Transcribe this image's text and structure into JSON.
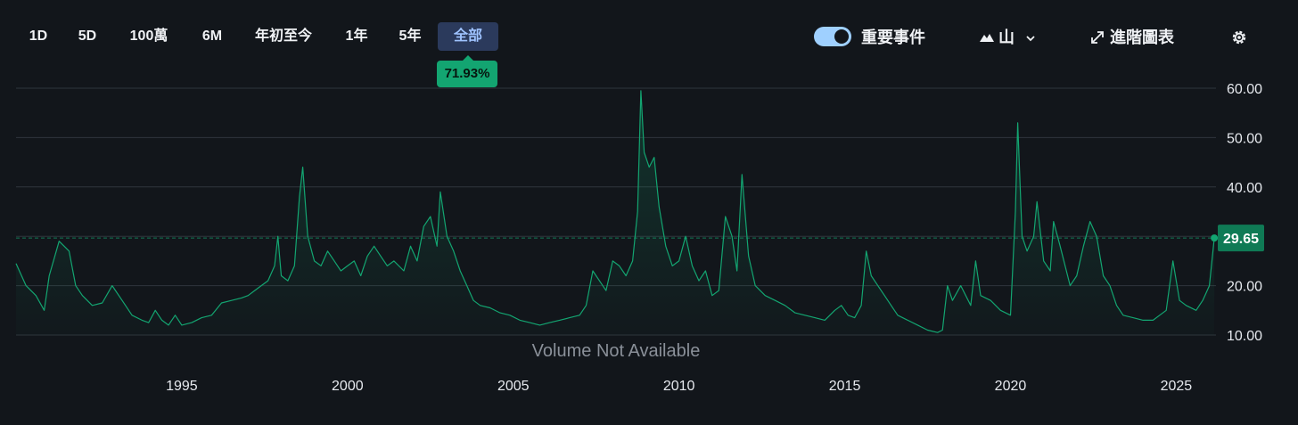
{
  "toolbar": {
    "ranges": [
      "1D",
      "5D",
      "100萬",
      "6M",
      "年初至今",
      "1年",
      "5年",
      "全部"
    ],
    "active_range": "全部",
    "change_badge": "71.93%",
    "events_toggle_label": "重要事件",
    "events_toggle_on": true,
    "chart_style_label": "山",
    "advanced_chart_label": "進階圖表"
  },
  "colors": {
    "line": "#13a571",
    "badge": "#13a571",
    "active_tab_bg": "#2b3a5c",
    "background": "#12161b"
  },
  "chart_data": {
    "type": "area",
    "y_ticks": [
      10,
      20,
      30,
      40,
      50,
      60
    ],
    "y_tick_labels": [
      "10.00",
      "20.00",
      "40.00",
      "50.00",
      "60.00"
    ],
    "ylim": [
      10,
      60
    ],
    "x_tick_labels": [
      "1995",
      "2000",
      "2005",
      "2010",
      "2015",
      "2020",
      "2025"
    ],
    "xlim": [
      1990.0,
      2026.2
    ],
    "last_value": 29.65,
    "last_value_label": "29.65",
    "reference_line_value": 29.65,
    "volume_message": "Volume Not Available",
    "grid": true,
    "series": [
      {
        "x": [
          1990.0,
          1990.3,
          1990.6,
          1990.85,
          1991.0,
          1991.3,
          1991.6,
          1991.8,
          1992.0,
          1992.3,
          1992.6,
          1992.9,
          1993.2,
          1993.5,
          1993.8,
          1994.0,
          1994.2,
          1994.4,
          1994.6,
          1994.8,
          1995.0,
          1995.3,
          1995.6,
          1995.9,
          1996.2,
          1996.5,
          1996.8,
          1997.0,
          1997.2,
          1997.4,
          1997.6,
          1997.8,
          1997.9,
          1998.0,
          1998.2,
          1998.4,
          1998.55,
          1998.65,
          1998.8,
          1999.0,
          1999.2,
          1999.4,
          1999.6,
          1999.8,
          2000.0,
          2000.2,
          2000.4,
          2000.6,
          2000.8,
          2001.0,
          2001.2,
          2001.4,
          2001.7,
          2001.9,
          2002.1,
          2002.3,
          2002.5,
          2002.7,
          2002.8,
          2003.0,
          2003.2,
          2003.4,
          2003.6,
          2003.8,
          2004.0,
          2004.3,
          2004.6,
          2004.9,
          2005.2,
          2005.5,
          2005.8,
          2006.1,
          2006.4,
          2006.7,
          2007.0,
          2007.2,
          2007.4,
          2007.6,
          2007.8,
          2008.0,
          2008.2,
          2008.4,
          2008.6,
          2008.75,
          2008.85,
          2008.95,
          2009.1,
          2009.25,
          2009.4,
          2009.6,
          2009.8,
          2010.0,
          2010.2,
          2010.4,
          2010.6,
          2010.8,
          2011.0,
          2011.2,
          2011.4,
          2011.6,
          2011.75,
          2011.9,
          2012.1,
          2012.3,
          2012.6,
          2012.9,
          2013.2,
          2013.5,
          2013.8,
          2014.1,
          2014.4,
          2014.7,
          2014.9,
          2015.1,
          2015.3,
          2015.5,
          2015.65,
          2015.8,
          2016.0,
          2016.2,
          2016.4,
          2016.6,
          2016.9,
          2017.2,
          2017.5,
          2017.8,
          2017.95,
          2018.1,
          2018.25,
          2018.5,
          2018.8,
          2018.95,
          2019.1,
          2019.4,
          2019.7,
          2020.0,
          2020.15,
          2020.22,
          2020.35,
          2020.5,
          2020.7,
          2020.8,
          2021.0,
          2021.2,
          2021.3,
          2021.5,
          2021.8,
          2022.0,
          2022.2,
          2022.4,
          2022.6,
          2022.8,
          2023.0,
          2023.2,
          2023.4,
          2023.7,
          2024.0,
          2024.3,
          2024.5,
          2024.7,
          2024.9,
          2025.1,
          2025.3,
          2025.6,
          2025.8,
          2026.0,
          2026.15
        ],
        "y": [
          24.5,
          20.0,
          18.0,
          15.0,
          22.0,
          29.0,
          27.0,
          20.0,
          18.0,
          16.0,
          16.5,
          20.0,
          17.0,
          14.0,
          13.0,
          12.5,
          15.0,
          13.0,
          12.0,
          14.0,
          12.0,
          12.5,
          13.5,
          14.0,
          16.5,
          17.0,
          17.5,
          18.0,
          19.0,
          20.0,
          21.0,
          24.0,
          30.0,
          22.0,
          21.0,
          24.0,
          38.0,
          44.0,
          30.0,
          25.0,
          24.0,
          27.0,
          25.0,
          23.0,
          24.0,
          25.0,
          22.0,
          26.0,
          28.0,
          26.0,
          24.0,
          25.0,
          23.0,
          28.0,
          25.0,
          32.0,
          34.0,
          28.0,
          39.0,
          30.0,
          27.0,
          23.0,
          20.0,
          17.0,
          16.0,
          15.5,
          14.5,
          14.0,
          13.0,
          12.5,
          12.0,
          12.5,
          13.0,
          13.5,
          14.0,
          16.0,
          23.0,
          21.0,
          19.0,
          25.0,
          24.0,
          22.0,
          25.0,
          35.0,
          59.5,
          47.0,
          44.0,
          46.0,
          36.0,
          28.0,
          24.0,
          25.0,
          30.0,
          24.0,
          21.0,
          23.0,
          18.0,
          19.0,
          34.0,
          30.0,
          23.0,
          42.5,
          26.0,
          20.0,
          18.0,
          17.0,
          16.0,
          14.5,
          14.0,
          13.5,
          13.0,
          15.0,
          16.0,
          14.0,
          13.5,
          16.0,
          27.0,
          22.0,
          20.0,
          18.0,
          16.0,
          14.0,
          13.0,
          12.0,
          11.0,
          10.5,
          11.0,
          20.0,
          17.0,
          20.0,
          16.0,
          25.0,
          18.0,
          17.0,
          15.0,
          14.0,
          35.0,
          53.0,
          30.0,
          27.0,
          30.0,
          37.0,
          25.0,
          23.0,
          33.0,
          28.0,
          20.0,
          22.0,
          28.0,
          33.0,
          30.0,
          22.0,
          20.0,
          16.0,
          14.0,
          13.5,
          13.0,
          13.0,
          14.0,
          15.0,
          25.0,
          17.0,
          16.0,
          15.0,
          17.0,
          20.0,
          29.65
        ]
      }
    ]
  }
}
